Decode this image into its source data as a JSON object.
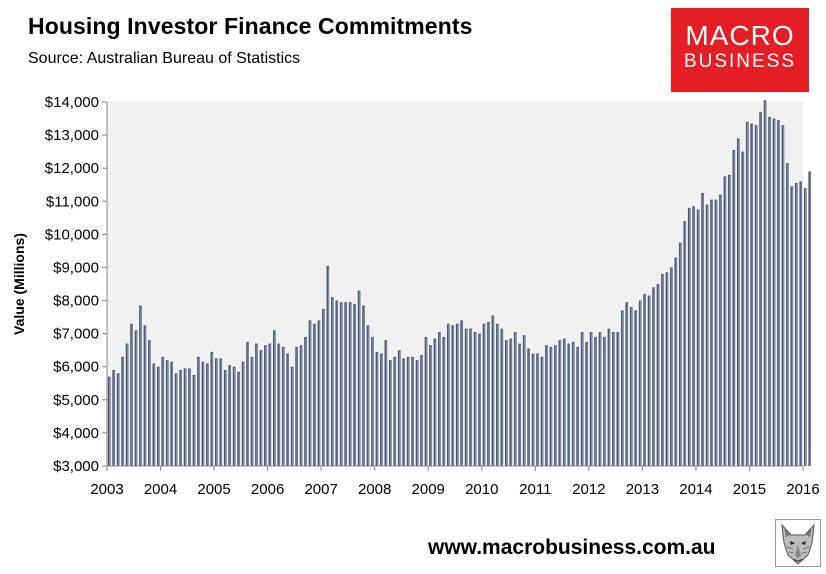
{
  "header": {
    "title": "Housing Investor Finance Commitments",
    "subtitle": "Source: Australian Bureau of Statistics"
  },
  "logo": {
    "line1": "MACRO",
    "line2": "BUSINESS"
  },
  "footer": {
    "url": "www.macrobusiness.com.au",
    "mascot_icon": "wolf-head-icon"
  },
  "colors": {
    "bar": "#4a5a78",
    "bar_highlight": "#ffffff",
    "plot_bg": "#f1f1f1",
    "logo_bg": "#e31e24"
  },
  "chart_data": {
    "type": "bar",
    "title": "Housing Investor Finance Commitments",
    "ylabel": "Value (Millions)",
    "xlabel": "",
    "ylim": [
      3000,
      14000
    ],
    "yticks": [
      3000,
      4000,
      5000,
      6000,
      7000,
      8000,
      9000,
      10000,
      11000,
      12000,
      13000,
      14000
    ],
    "ytick_labels": [
      "$3,000",
      "$4,000",
      "$5,000",
      "$6,000",
      "$7,000",
      "$8,000",
      "$9,000",
      "$10,000",
      "$11,000",
      "$12,000",
      "$13,000",
      "$14,000"
    ],
    "x_tick_labels": [
      "2003",
      "2004",
      "2005",
      "2006",
      "2007",
      "2008",
      "2009",
      "2010",
      "2011",
      "2012",
      "2013",
      "2014",
      "2015",
      "2016"
    ],
    "x_start": "2003-01",
    "frequency": "monthly",
    "grid": false,
    "legend": "none",
    "values": [
      5700,
      5900,
      5800,
      6300,
      6700,
      7300,
      7100,
      7850,
      7250,
      6800,
      6100,
      6000,
      6300,
      6200,
      6150,
      5800,
      5900,
      5950,
      5950,
      5750,
      6300,
      6150,
      6100,
      6450,
      6250,
      6250,
      5900,
      6050,
      6000,
      5850,
      6150,
      6750,
      6300,
      6700,
      6500,
      6650,
      6700,
      7100,
      6700,
      6600,
      6400,
      6000,
      6600,
      6650,
      6900,
      7400,
      7300,
      7400,
      7750,
      9050,
      8100,
      8000,
      7950,
      7950,
      7950,
      7900,
      8300,
      7850,
      7250,
      6900,
      6450,
      6400,
      6800,
      6200,
      6300,
      6500,
      6250,
      6300,
      6300,
      6200,
      6350,
      6900,
      6650,
      6850,
      7050,
      6900,
      7300,
      7250,
      7300,
      7400,
      7150,
      7150,
      7050,
      7000,
      7300,
      7350,
      7550,
      7300,
      7150,
      6800,
      6850,
      7050,
      6700,
      6950,
      6550,
      6400,
      6400,
      6300,
      6650,
      6600,
      6650,
      6800,
      6850,
      6700,
      6750,
      6600,
      7050,
      6750,
      7050,
      6900,
      7050,
      6900,
      7150,
      7050,
      7050,
      7700,
      7950,
      7800,
      7700,
      8000,
      8200,
      8150,
      8400,
      8500,
      8800,
      8850,
      9000,
      9300,
      9750,
      10400,
      10800,
      10850,
      10750,
      11250,
      10900,
      11050,
      11050,
      11200,
      11750,
      11800,
      12550,
      12900,
      12500,
      13400,
      13350,
      13300,
      13700,
      14050,
      13550,
      13500,
      13450,
      13300,
      12150,
      11450,
      11550,
      11600,
      11400,
      11900
    ]
  }
}
